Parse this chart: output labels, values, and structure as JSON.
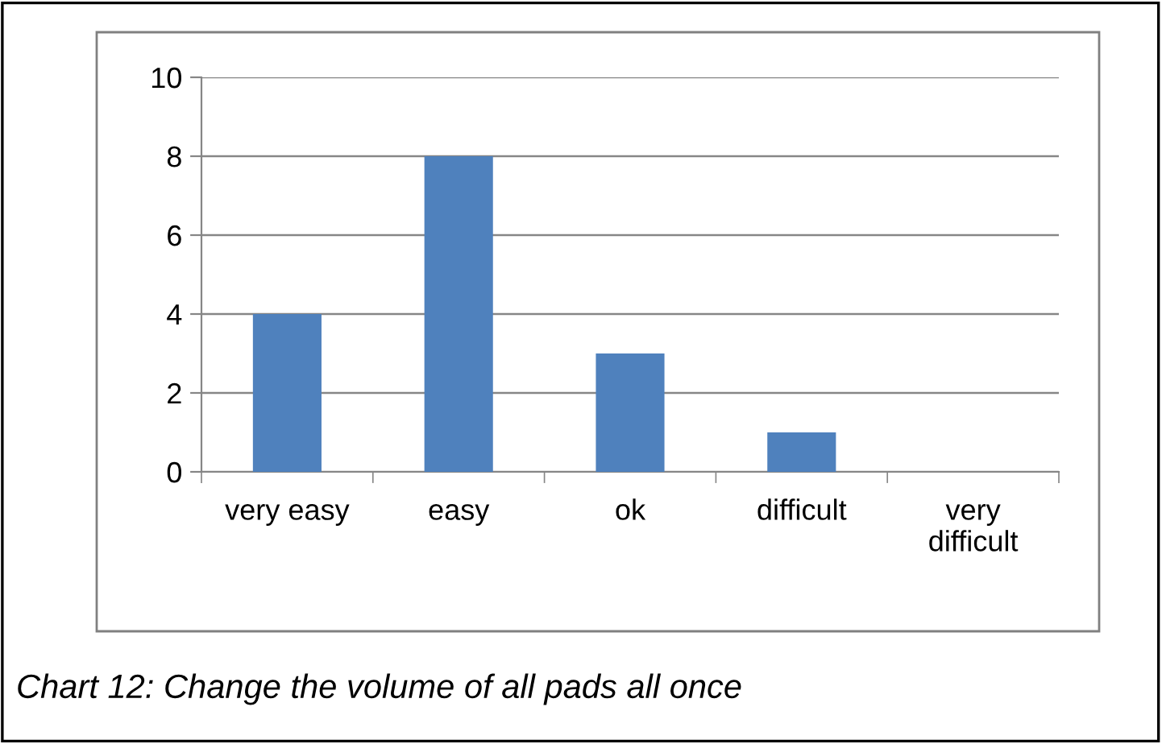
{
  "chart_data": {
    "type": "bar",
    "categories": [
      "very easy",
      "easy",
      "ok",
      "difficult",
      "very difficult"
    ],
    "values": [
      4,
      8,
      3,
      1,
      0
    ],
    "color": "#4f81bd",
    "ylim": [
      0,
      10
    ],
    "yticks": [
      0,
      2,
      4,
      6,
      8,
      10
    ],
    "grid": "y",
    "legend": false,
    "annotations": [
      "Chart 12: Change the volume of all pads all once"
    ]
  }
}
